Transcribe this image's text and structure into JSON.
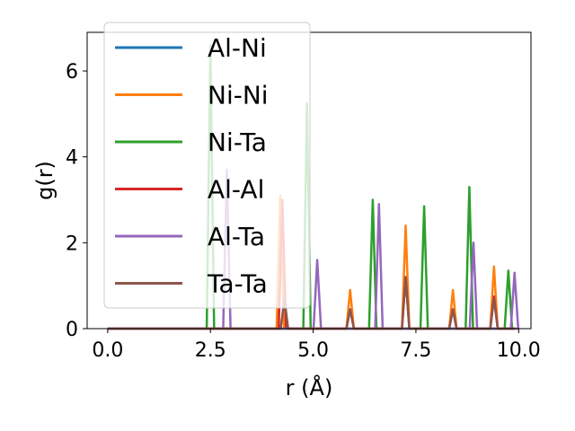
{
  "chart_data": {
    "type": "line",
    "xlabel": "r (Å)",
    "ylabel": "g(r)",
    "xlim": [
      -0.5,
      10.3
    ],
    "ylim": [
      0,
      6.9
    ],
    "xticks": [
      "0.0",
      "2.5",
      "5.0",
      "7.5",
      "10.0"
    ],
    "xtick_values": [
      0.0,
      2.5,
      5.0,
      7.5,
      10.0
    ],
    "yticks": [
      "0",
      "2",
      "4",
      "6"
    ],
    "ytick_values": [
      0,
      2,
      4,
      6
    ],
    "grid": false,
    "legend_position": "top-left",
    "series": [
      {
        "name": "Al-Ni",
        "color": "#1f77b4",
        "peaks": []
      },
      {
        "name": "Ni-Ni",
        "color": "#ff7f0e",
        "peaks": [
          [
            4.2,
            3.1
          ],
          [
            5.9,
            0.9
          ],
          [
            7.25,
            2.4
          ],
          [
            8.4,
            0.9
          ],
          [
            9.4,
            1.45
          ]
        ]
      },
      {
        "name": "Ni-Ta",
        "color": "#2ca02c",
        "peaks": [
          [
            2.5,
            6.6
          ],
          [
            4.85,
            5.25
          ],
          [
            6.45,
            3.0
          ],
          [
            7.7,
            2.85
          ],
          [
            8.8,
            3.3
          ],
          [
            9.75,
            1.35
          ]
        ]
      },
      {
        "name": "Al-Al",
        "color": "#d62728",
        "peaks": [
          [
            4.25,
            3.0
          ],
          [
            5.9,
            0.45
          ],
          [
            7.25,
            1.2
          ],
          [
            8.4,
            0.45
          ],
          [
            9.4,
            0.75
          ]
        ]
      },
      {
        "name": "Al-Ta",
        "color": "#9467bd",
        "peaks": [
          [
            2.9,
            3.7
          ],
          [
            5.1,
            1.6
          ],
          [
            6.6,
            2.9
          ],
          [
            8.9,
            2.0
          ],
          [
            9.9,
            1.3
          ]
        ]
      },
      {
        "name": "Ta-Ta",
        "color": "#8c564b",
        "peaks": [
          [
            4.3,
            0.7
          ],
          [
            5.9,
            0.45
          ],
          [
            7.25,
            1.2
          ],
          [
            8.4,
            0.45
          ],
          [
            9.4,
            0.7
          ]
        ]
      }
    ]
  }
}
